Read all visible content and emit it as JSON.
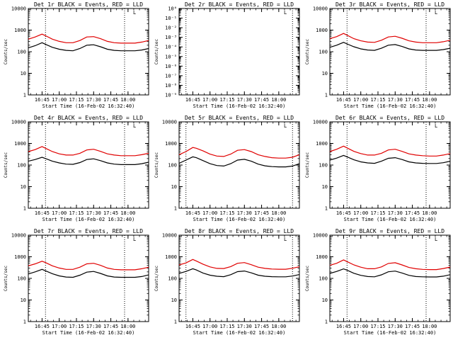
{
  "chart_data": [
    {
      "type": "line",
      "title": "Det 1r BLACK = Events, RED = LLD",
      "xlabel": "Start Time (16-Feb-02 16:32:40)",
      "ylabel": "Counts/sec",
      "y_scale": "log",
      "ylim": [
        1,
        10000
      ],
      "y_tick_labels": [
        "1",
        "10",
        "100",
        "1000",
        "10000"
      ],
      "xlim": [
        16.55,
        18.3
      ],
      "x_tick_labels": [
        "16:45",
        "17:00",
        "17:15",
        "17:30",
        "17:45",
        "18:00"
      ],
      "vlines": [
        16.8,
        17.95
      ],
      "marker_label": "L",
      "series": [
        {
          "color": "#e00000",
          "x": [
            16.55,
            16.65,
            16.75,
            16.8,
            16.9,
            17.0,
            17.1,
            17.2,
            17.3,
            17.4,
            17.5,
            17.6,
            17.7,
            17.8,
            17.9,
            18.0,
            18.1,
            18.2,
            18.3
          ],
          "values": [
            380,
            480,
            650,
            550,
            380,
            300,
            260,
            260,
            330,
            480,
            500,
            400,
            300,
            260,
            250,
            250,
            250,
            280,
            330
          ]
        },
        {
          "color": "#000000",
          "x": [
            16.55,
            16.65,
            16.75,
            16.8,
            16.9,
            17.0,
            17.1,
            17.2,
            17.3,
            17.4,
            17.5,
            17.6,
            17.7,
            17.8,
            17.9,
            18.0,
            18.1,
            18.2,
            18.3
          ],
          "values": [
            150,
            190,
            260,
            220,
            160,
            130,
            115,
            110,
            140,
            200,
            210,
            170,
            130,
            115,
            110,
            110,
            110,
            120,
            140
          ]
        }
      ]
    },
    {
      "type": "line",
      "title": "Det 2r BLACK = Events, RED = LLD",
      "xlabel": "Start Time (16-Feb-02 16:32:40)",
      "ylabel": "Counts/sec",
      "y_scale": "log",
      "ylim": [
        1e-09,
        1
      ],
      "y_tick_labels": [
        "10⁻⁹",
        "10⁻⁸",
        "10⁻⁷",
        "10⁻⁶",
        "10⁻⁵",
        "10⁻⁴",
        "10⁻³",
        "10⁻²",
        "10⁻¹",
        "10⁰"
      ],
      "xlim": [
        16.55,
        18.3
      ],
      "x_tick_labels": [
        "16:45",
        "17:00",
        "17:15",
        "17:30",
        "17:45",
        "18:00"
      ],
      "vlines": [
        16.65,
        18.2
      ],
      "marker_label": "L",
      "series": []
    },
    {
      "type": "line",
      "title": "Det 3r BLACK = Events, RED = LLD",
      "xlabel": "Start Time (16-Feb-02 16:32:40)",
      "ylabel": "Counts/sec",
      "y_scale": "log",
      "ylim": [
        1,
        10000
      ],
      "y_tick_labels": [
        "1",
        "10",
        "100",
        "1000",
        "10000"
      ],
      "xlim": [
        16.55,
        18.3
      ],
      "x_tick_labels": [
        "16:45",
        "17:00",
        "17:15",
        "17:30",
        "17:45",
        "18:00"
      ],
      "vlines": [
        16.8,
        17.95
      ],
      "marker_label": "L",
      "series": [
        {
          "color": "#e00000",
          "x": [
            16.55,
            16.65,
            16.75,
            16.8,
            16.9,
            17.0,
            17.1,
            17.2,
            17.3,
            17.4,
            17.5,
            17.6,
            17.7,
            17.8,
            17.9,
            18.0,
            18.1,
            18.2,
            18.3
          ],
          "values": [
            400,
            500,
            700,
            580,
            400,
            320,
            280,
            270,
            340,
            480,
            520,
            420,
            320,
            280,
            260,
            260,
            260,
            290,
            340
          ]
        },
        {
          "color": "#000000",
          "x": [
            16.55,
            16.65,
            16.75,
            16.8,
            16.9,
            17.0,
            17.1,
            17.2,
            17.3,
            17.4,
            17.5,
            17.6,
            17.7,
            17.8,
            17.9,
            18.0,
            18.1,
            18.2,
            18.3
          ],
          "values": [
            160,
            200,
            270,
            230,
            170,
            135,
            120,
            115,
            145,
            200,
            215,
            175,
            135,
            120,
            115,
            115,
            115,
            125,
            145
          ]
        }
      ]
    },
    {
      "type": "line",
      "title": "Det 4r BLACK = Events, RED = LLD",
      "xlabel": "Start Time (16-Feb-02 16:32:40)",
      "ylabel": "Counts/sec",
      "y_scale": "log",
      "ylim": [
        1,
        10000
      ],
      "y_tick_labels": [
        "1",
        "10",
        "100",
        "1000",
        "10000"
      ],
      "xlim": [
        16.55,
        18.3
      ],
      "x_tick_labels": [
        "16:45",
        "17:00",
        "17:15",
        "17:30",
        "17:45",
        "18:00"
      ],
      "vlines": [
        16.8,
        17.95
      ],
      "marker_label": "L",
      "series": [
        {
          "color": "#e00000",
          "x": [
            16.55,
            16.65,
            16.75,
            16.8,
            16.9,
            17.0,
            17.1,
            17.2,
            17.3,
            17.4,
            17.5,
            17.6,
            17.7,
            17.8,
            17.9,
            18.0,
            18.1,
            18.2,
            18.3
          ],
          "values": [
            420,
            520,
            720,
            600,
            420,
            330,
            290,
            290,
            350,
            500,
            540,
            430,
            330,
            290,
            270,
            270,
            270,
            300,
            350
          ]
        },
        {
          "color": "#000000",
          "x": [
            16.55,
            16.65,
            16.75,
            16.8,
            16.9,
            17.0,
            17.1,
            17.2,
            17.3,
            17.4,
            17.5,
            17.6,
            17.7,
            17.8,
            17.9,
            18.0,
            18.1,
            18.2,
            18.3
          ],
          "values": [
            150,
            180,
            230,
            200,
            150,
            125,
            110,
            108,
            130,
            180,
            195,
            160,
            125,
            110,
            105,
            105,
            105,
            115,
            135
          ]
        }
      ]
    },
    {
      "type": "line",
      "title": "Det 5r BLACK = Events, RED = LLD",
      "xlabel": "Start Time (16-Feb-02 16:32:40)",
      "ylabel": "Counts/sec",
      "y_scale": "log",
      "ylim": [
        1,
        10000
      ],
      "y_tick_labels": [
        "1",
        "10",
        "100",
        "1000",
        "10000"
      ],
      "xlim": [
        16.55,
        18.3
      ],
      "x_tick_labels": [
        "16:45",
        "17:00",
        "17:15",
        "17:30",
        "17:45",
        "18:00"
      ],
      "vlines": [
        16.65,
        18.2
      ],
      "marker_label": "L",
      "series": [
        {
          "color": "#e00000",
          "x": [
            16.55,
            16.65,
            16.75,
            16.8,
            16.9,
            17.0,
            17.1,
            17.2,
            17.3,
            17.4,
            17.5,
            17.6,
            17.7,
            17.8,
            17.9,
            18.0,
            18.1,
            18.2,
            18.3
          ],
          "values": [
            300,
            420,
            650,
            600,
            450,
            320,
            260,
            250,
            320,
            480,
            520,
            420,
            300,
            250,
            220,
            210,
            210,
            230,
            300
          ]
        },
        {
          "color": "#000000",
          "x": [
            16.55,
            16.65,
            16.75,
            16.8,
            16.9,
            17.0,
            17.1,
            17.2,
            17.3,
            17.4,
            17.5,
            17.6,
            17.7,
            17.8,
            17.9,
            18.0,
            18.1,
            18.2,
            18.3
          ],
          "values": [
            120,
            170,
            240,
            220,
            160,
            115,
            95,
            90,
            115,
            170,
            185,
            150,
            110,
            92,
            85,
            82,
            82,
            90,
            115
          ]
        }
      ]
    },
    {
      "type": "line",
      "title": "Det 6r BLACK = Events, RED = LLD",
      "xlabel": "Start Time (16-Feb-02 16:32:40)",
      "ylabel": "Counts/sec",
      "y_scale": "log",
      "ylim": [
        1,
        10000
      ],
      "y_tick_labels": [
        "1",
        "10",
        "100",
        "1000",
        "10000"
      ],
      "xlim": [
        16.55,
        18.3
      ],
      "x_tick_labels": [
        "16:45",
        "17:00",
        "17:15",
        "17:30",
        "17:45",
        "18:00"
      ],
      "vlines": [
        16.8,
        17.95
      ],
      "marker_label": "L",
      "series": [
        {
          "color": "#e00000",
          "x": [
            16.55,
            16.65,
            16.75,
            16.8,
            16.9,
            17.0,
            17.1,
            17.2,
            17.3,
            17.4,
            17.5,
            17.6,
            17.7,
            17.8,
            17.9,
            18.0,
            18.1,
            18.2,
            18.3
          ],
          "values": [
            420,
            540,
            750,
            620,
            430,
            340,
            290,
            290,
            350,
            500,
            540,
            430,
            330,
            290,
            270,
            260,
            260,
            290,
            340
          ]
        },
        {
          "color": "#000000",
          "x": [
            16.55,
            16.65,
            16.75,
            16.8,
            16.9,
            17.0,
            17.1,
            17.2,
            17.3,
            17.4,
            17.5,
            17.6,
            17.7,
            17.8,
            17.9,
            18.0,
            18.1,
            18.2,
            18.3
          ],
          "values": [
            170,
            210,
            280,
            240,
            175,
            140,
            125,
            120,
            150,
            205,
            220,
            180,
            140,
            125,
            120,
            118,
            118,
            128,
            150
          ]
        }
      ]
    },
    {
      "type": "line",
      "title": "Det 7r BLACK = Events, RED = LLD",
      "xlabel": "Start Time (16-Feb-02 16:32:40)",
      "ylabel": "Counts/sec",
      "y_scale": "log",
      "ylim": [
        1,
        10000
      ],
      "y_tick_labels": [
        "1",
        "10",
        "100",
        "1000",
        "10000"
      ],
      "xlim": [
        16.55,
        18.3
      ],
      "x_tick_labels": [
        "16:45",
        "17:00",
        "17:15",
        "17:30",
        "17:45",
        "18:00"
      ],
      "vlines": [
        16.8,
        17.95
      ],
      "marker_label": "L",
      "series": [
        {
          "color": "#e00000",
          "x": [
            16.55,
            16.65,
            16.75,
            16.8,
            16.9,
            17.0,
            17.1,
            17.2,
            17.3,
            17.4,
            17.5,
            17.6,
            17.7,
            17.8,
            17.9,
            18.0,
            18.1,
            18.2,
            18.3
          ],
          "values": [
            380,
            470,
            620,
            540,
            380,
            300,
            260,
            260,
            330,
            470,
            500,
            400,
            300,
            260,
            250,
            250,
            250,
            280,
            330
          ]
        },
        {
          "color": "#000000",
          "x": [
            16.55,
            16.65,
            16.75,
            16.8,
            16.9,
            17.0,
            17.1,
            17.2,
            17.3,
            17.4,
            17.5,
            17.6,
            17.7,
            17.8,
            17.9,
            18.0,
            18.1,
            18.2,
            18.3
          ],
          "values": [
            160,
            200,
            260,
            225,
            165,
            130,
            115,
            112,
            140,
            195,
            210,
            170,
            130,
            115,
            112,
            112,
            112,
            122,
            145
          ]
        }
      ]
    },
    {
      "type": "line",
      "title": "Det 8r BLACK = Events, RED = LLD",
      "xlabel": "Start Time (16-Feb-02 16:32:40)",
      "ylabel": "Counts/sec",
      "y_scale": "log",
      "ylim": [
        1,
        10000
      ],
      "y_tick_labels": [
        "1",
        "10",
        "100",
        "1000",
        "10000"
      ],
      "xlim": [
        16.55,
        18.3
      ],
      "x_tick_labels": [
        "16:45",
        "17:00",
        "17:15",
        "17:30",
        "17:45",
        "18:00"
      ],
      "vlines": [
        16.65,
        18.2
      ],
      "marker_label": "L",
      "series": [
        {
          "color": "#e00000",
          "x": [
            16.55,
            16.65,
            16.75,
            16.8,
            16.9,
            17.0,
            17.1,
            17.2,
            17.3,
            17.4,
            17.5,
            17.6,
            17.7,
            17.8,
            17.9,
            18.0,
            18.1,
            18.2,
            18.3
          ],
          "values": [
            420,
            520,
            750,
            640,
            450,
            340,
            290,
            285,
            350,
            500,
            540,
            430,
            330,
            290,
            270,
            265,
            265,
            295,
            345
          ]
        },
        {
          "color": "#000000",
          "x": [
            16.55,
            16.65,
            16.75,
            16.8,
            16.9,
            17.0,
            17.1,
            17.2,
            17.3,
            17.4,
            17.5,
            17.6,
            17.7,
            17.8,
            17.9,
            18.0,
            18.1,
            18.2,
            18.3
          ],
          "values": [
            170,
            210,
            280,
            245,
            175,
            140,
            125,
            120,
            148,
            205,
            220,
            180,
            140,
            125,
            120,
            118,
            118,
            128,
            150
          ]
        }
      ]
    },
    {
      "type": "line",
      "title": "Det 9r BLACK = Events, RED = LLD",
      "xlabel": "Start Time (16-Feb-02 16:32:40)",
      "ylabel": "Counts/sec",
      "y_scale": "log",
      "ylim": [
        1,
        10000
      ],
      "y_tick_labels": [
        "1",
        "10",
        "100",
        "1000",
        "10000"
      ],
      "xlim": [
        16.55,
        18.3
      ],
      "x_tick_labels": [
        "16:45",
        "17:00",
        "17:15",
        "17:30",
        "17:45",
        "18:00"
      ],
      "vlines": [
        16.8,
        17.95
      ],
      "marker_label": "L",
      "series": [
        {
          "color": "#e00000",
          "x": [
            16.55,
            16.65,
            16.75,
            16.8,
            16.9,
            17.0,
            17.1,
            17.2,
            17.3,
            17.4,
            17.5,
            17.6,
            17.7,
            17.8,
            17.9,
            18.0,
            18.1,
            18.2,
            18.3
          ],
          "values": [
            400,
            500,
            720,
            600,
            420,
            330,
            280,
            280,
            340,
            490,
            530,
            420,
            320,
            280,
            260,
            255,
            255,
            285,
            335
          ]
        },
        {
          "color": "#000000",
          "x": [
            16.55,
            16.65,
            16.75,
            16.8,
            16.9,
            17.0,
            17.1,
            17.2,
            17.3,
            17.4,
            17.5,
            17.6,
            17.7,
            17.8,
            17.9,
            18.0,
            18.1,
            18.2,
            18.3
          ],
          "values": [
            170,
            210,
            275,
            240,
            172,
            138,
            122,
            118,
            146,
            202,
            218,
            178,
            138,
            122,
            118,
            116,
            116,
            126,
            148
          ]
        }
      ]
    }
  ]
}
